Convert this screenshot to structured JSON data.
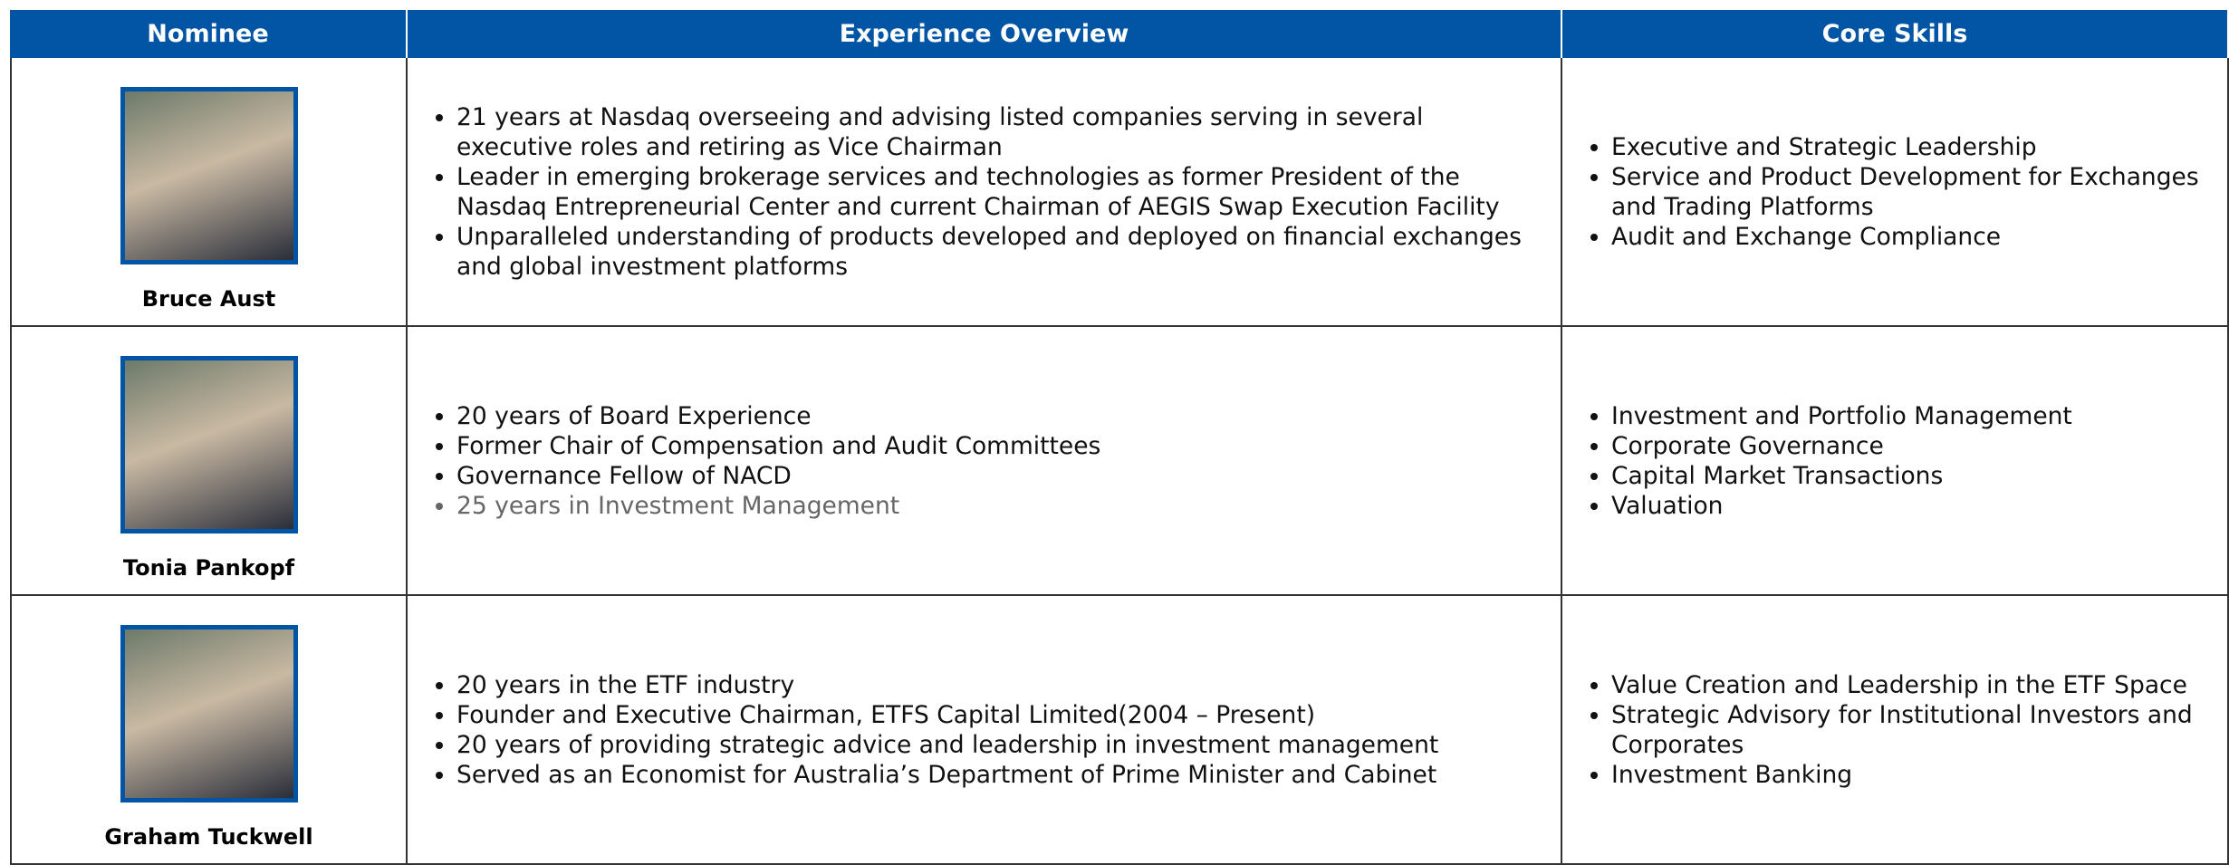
{
  "header": {
    "columns": [
      "Nominee",
      "Experience Overview",
      "Core Skills"
    ]
  },
  "rows": [
    {
      "name": "Bruce Aust",
      "experience": [
        "21 years at Nasdaq overseeing and advising listed companies serving in several executive roles and retiring as Vice Chairman",
        "Leader in emerging brokerage services and technologies as former President of the Nasdaq Entrepreneurial Center and current Chairman of AEGIS Swap Execution Facility",
        "Unparalleled understanding of products developed and deployed on financial exchanges and global investment platforms"
      ],
      "skills": [
        "Executive and Strategic Leadership",
        "Service and Product Development for Exchanges and Trading Platforms",
        "Audit and Exchange Compliance"
      ]
    },
    {
      "name": "Tonia Pankopf",
      "experience": [
        "20 years of Board Experience",
        "Former Chair of Compensation and Audit Committees",
        "Governance Fellow of NACD",
        "25 years in Investment Management"
      ],
      "skills": [
        "Investment and Portfolio Management",
        "Corporate Governance",
        "Capital Market Transactions",
        "Valuation"
      ]
    },
    {
      "name": "Graham Tuckwell",
      "experience": [
        "20 years in the ETF industry",
        "Founder and Executive Chairman, ETFS Capital Limited(2004 – Present)",
        "20 years of providing strategic advice and leadership in investment management",
        "Served as an Economist for Australia’s Department of Prime Minister and Cabinet"
      ],
      "skills": [
        "Value Creation and Leadership in the ETF Space",
        "Strategic Advisory for Institutional Investors and Corporates",
        "Investment Banking"
      ]
    }
  ]
}
